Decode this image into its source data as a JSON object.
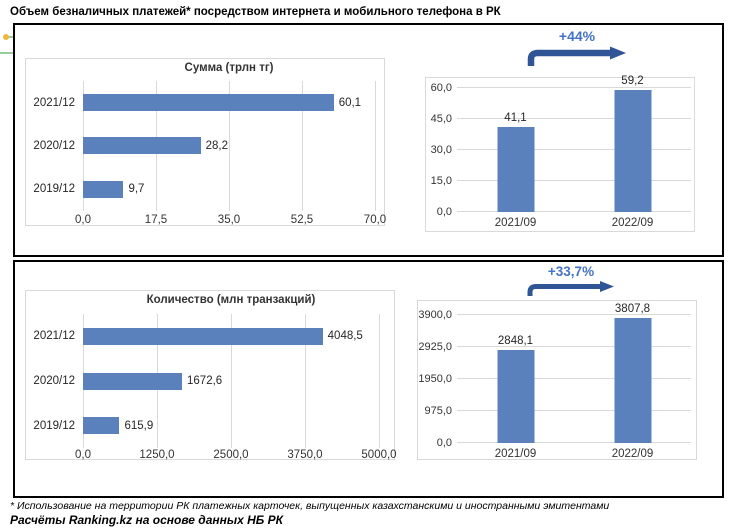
{
  "title": "Объем безналичных платежей* посредством интернета и мобильного телефона в РК",
  "footnote": "* Использование на территории РК платежных карточек, выпущенных казахстанскими и иностранными эмитентами",
  "source": "Расчёты Ranking.kz на основе данных НБ РК",
  "colors": {
    "bar": "#5B81BD",
    "grid": "#D9D9D9",
    "frame": "#D9D9D9",
    "annotation_text": "#4472C4",
    "arrow": "#2F5597",
    "panel_border": "#000000",
    "selection_green": "#72BF72",
    "selection_yellow": "#EFB73E"
  },
  "chart_data": [
    {
      "type": "bar",
      "orientation": "horizontal",
      "title": "Сумма (трлн тг)",
      "categories": [
        "2021/12",
        "2020/12",
        "2019/12"
      ],
      "values": [
        60.1,
        28.2,
        9.7
      ],
      "value_labels": [
        "60,1",
        "28,2",
        "9,7"
      ],
      "xticks": [
        "0,0",
        "17,5",
        "35,0",
        "52,5",
        "70,0"
      ],
      "xlim": [
        0,
        70
      ],
      "grid": true
    },
    {
      "type": "bar",
      "orientation": "vertical",
      "title": "",
      "categories": [
        "2021/09",
        "2022/09"
      ],
      "values": [
        41.1,
        59.2
      ],
      "value_labels": [
        "41,1",
        "59,2"
      ],
      "yticks": [
        "60,0",
        "45,0",
        "30,0",
        "15,0",
        "0,0"
      ],
      "ylim": [
        0,
        60
      ],
      "annotation": "+44%",
      "grid": true
    },
    {
      "type": "bar",
      "orientation": "horizontal",
      "title": "Количество (млн транзакций)",
      "categories": [
        "2021/12",
        "2020/12",
        "2019/12"
      ],
      "values": [
        4048.5,
        1672.6,
        615.9
      ],
      "value_labels": [
        "4048,5",
        "1672,6",
        "615,9"
      ],
      "xticks": [
        "0,0",
        "1250,0",
        "2500,0",
        "3750,0",
        "5000,0"
      ],
      "xlim": [
        0,
        5000
      ],
      "grid": true
    },
    {
      "type": "bar",
      "orientation": "vertical",
      "title": "",
      "categories": [
        "2021/09",
        "2022/09"
      ],
      "values": [
        2848.1,
        3807.8
      ],
      "value_labels": [
        "2848,1",
        "3807,8"
      ],
      "yticks": [
        "3900,0",
        "2925,0",
        "1950,0",
        "975,0",
        "0,0"
      ],
      "ylim": [
        0,
        3900
      ],
      "annotation": "+33,7%",
      "grid": true
    }
  ]
}
